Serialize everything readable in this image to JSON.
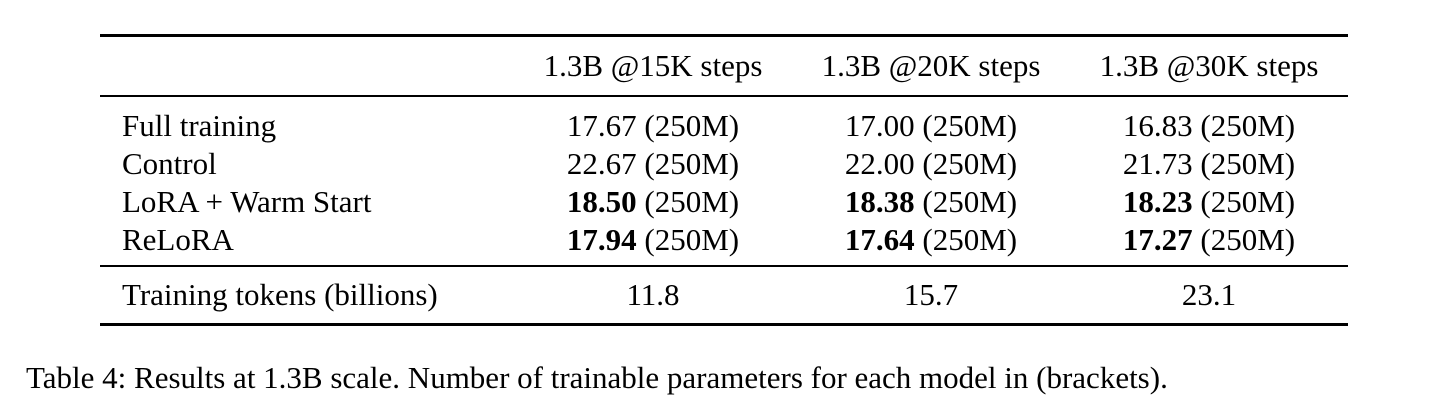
{
  "table": {
    "columns": [
      "",
      "1.3B @15K steps",
      "1.3B @20K steps",
      "1.3B @30K steps"
    ],
    "rows": [
      {
        "label": "Full training",
        "cells": [
          {
            "value": "17.67",
            "params": "(250M)",
            "bold": false
          },
          {
            "value": "17.00",
            "params": "(250M)",
            "bold": false
          },
          {
            "value": "16.83",
            "params": "(250M)",
            "bold": false
          }
        ]
      },
      {
        "label": "Control",
        "cells": [
          {
            "value": "22.67",
            "params": "(250M)",
            "bold": false
          },
          {
            "value": "22.00",
            "params": "(250M)",
            "bold": false
          },
          {
            "value": "21.73",
            "params": "(250M)",
            "bold": false
          }
        ]
      },
      {
        "label": "LoRA + Warm Start",
        "cells": [
          {
            "value": "18.50",
            "params": "(250M)",
            "bold": true
          },
          {
            "value": "18.38",
            "params": "(250M)",
            "bold": true
          },
          {
            "value": "18.23",
            "params": "(250M)",
            "bold": true
          }
        ]
      },
      {
        "label": "ReLoRA",
        "cells": [
          {
            "value": "17.94",
            "params": "(250M)",
            "bold": true
          },
          {
            "value": "17.64",
            "params": "(250M)",
            "bold": true
          },
          {
            "value": "17.27",
            "params": "(250M)",
            "bold": true
          }
        ]
      }
    ],
    "tokens_row": {
      "label": "Training tokens (billions)",
      "values": [
        "11.8",
        "15.7",
        "23.1"
      ]
    }
  },
  "caption": "Table 4: Results at 1.3B scale. Number of trainable parameters for each model in (brackets)."
}
